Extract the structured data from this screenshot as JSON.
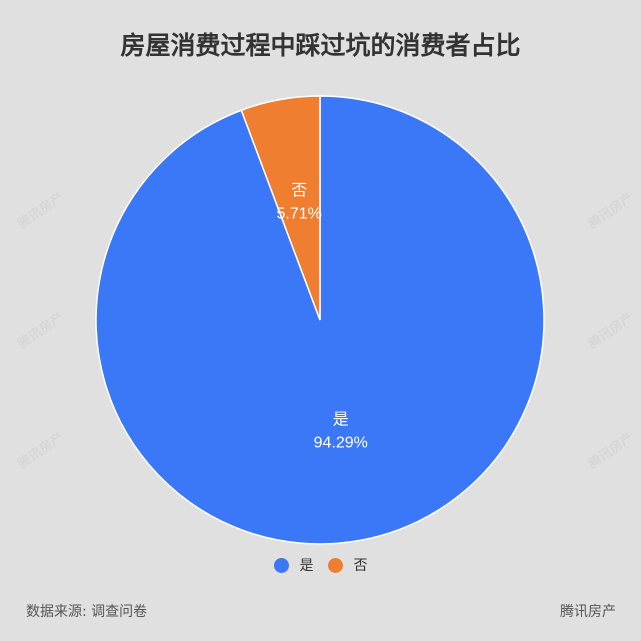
{
  "title": "房屋消费过程中踩过坑的消费者占比",
  "chart_data": {
    "type": "pie",
    "title": "房屋消费过程中踩过坑的消费者占比",
    "slices": [
      {
        "label": "是",
        "value": 94.29,
        "display": "94.29%",
        "color": "#3a78f7"
      },
      {
        "label": "否",
        "value": 5.71,
        "display": "5.71%",
        "color": "#ef7e30"
      }
    ],
    "start_angle": "top",
    "direction": "clockwise",
    "legend_position": "bottom"
  },
  "legend": [
    {
      "label": "是"
    },
    {
      "label": "否"
    }
  ],
  "footer": {
    "source": "数据来源: 调查问卷",
    "brand": "腾讯房产"
  },
  "watermark": "腾讯房产"
}
